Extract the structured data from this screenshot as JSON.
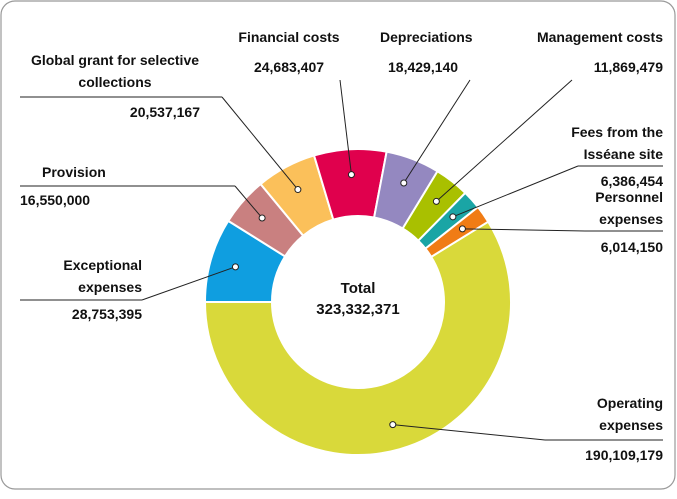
{
  "chart_data": {
    "type": "donut",
    "categories": [
      "Operating expenses",
      "Exceptional expenses",
      "Provision",
      "Global grant for selective collections",
      "Financial costs",
      "Depreciations",
      "Management costs",
      "Fees from the Isséane site",
      "Personnel expenses"
    ],
    "values": [
      190109179,
      28753395,
      16550000,
      20537167,
      24683407,
      18429140,
      11869479,
      6386454,
      6014150
    ],
    "value_labels": [
      "190,109,179",
      "28,753,395",
      "16,550,000",
      "20,537,167",
      "24,683,407",
      "18,429,140",
      "11,869,479",
      "6,386,454",
      "6,014,150"
    ],
    "colors": [
      "#d9d93a",
      "#0f9ee0",
      "#c98080",
      "#fbc05a",
      "#e0004d",
      "#9488c0",
      "#a9c000",
      "#1aa5a5",
      "#f07c15"
    ],
    "total": {
      "label": "Total",
      "value": 323332371,
      "value_label": "323,332,371"
    }
  }
}
